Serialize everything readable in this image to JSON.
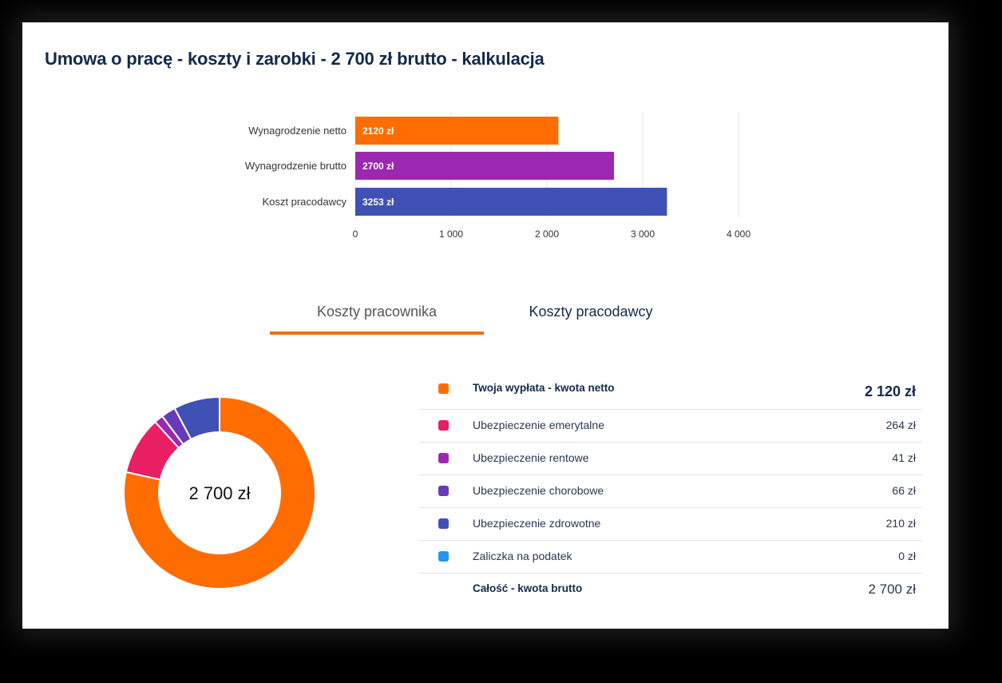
{
  "title": "Umowa o pracę - koszty i zarobki - 2 700 zł brutto - kalkulacja",
  "tabs": [
    {
      "label": "Koszty pracownika",
      "active": true
    },
    {
      "label": "Koszty pracodawcy",
      "active": false
    }
  ],
  "chart_data": [
    {
      "type": "bar",
      "orientation": "horizontal",
      "categories": [
        "Wynagrodzenie netto",
        "Wynagrodzenie brutto",
        "Koszt pracodawcy"
      ],
      "values": [
        2120,
        2700,
        3253
      ],
      "data_labels": [
        "2120 zł",
        "2700 zł",
        "3253 zł"
      ],
      "colors": [
        "#ff6d00",
        "#9c27b0",
        "#3f51b5"
      ],
      "xlim": [
        0,
        4000
      ],
      "xticks": [
        0,
        1000,
        2000,
        3000,
        4000
      ],
      "xtick_labels": [
        "0",
        "1 000",
        "2 000",
        "3 000",
        "4 000"
      ],
      "grid": true
    },
    {
      "type": "pie",
      "donut": true,
      "center_label": "2 700 zł",
      "values": [
        2120,
        264,
        41,
        66,
        210,
        0
      ],
      "colors": [
        "#ff6d00",
        "#e91e63",
        "#9c27b0",
        "#673ab7",
        "#3f51b5",
        "#2196f3"
      ]
    }
  ],
  "legend": {
    "rows": [
      {
        "label": "Twoja wypłata - kwota netto",
        "value": "2 120 zł",
        "color": "#ff6d00"
      },
      {
        "label": "Ubezpieczenie emerytalne",
        "value": "264 zł",
        "color": "#e91e63"
      },
      {
        "label": "Ubezpieczenie rentowe",
        "value": "41 zł",
        "color": "#9c27b0"
      },
      {
        "label": "Ubezpieczenie chorobowe",
        "value": "66 zł",
        "color": "#673ab7"
      },
      {
        "label": "Ubezpieczenie zdrowotne",
        "value": "210 zł",
        "color": "#3f51b5"
      },
      {
        "label": "Zaliczka na podatek",
        "value": "0 zł",
        "color": "#2196f3"
      }
    ],
    "total": {
      "label": "Całość - kwota brutto",
      "value": "2 700 zł"
    }
  }
}
